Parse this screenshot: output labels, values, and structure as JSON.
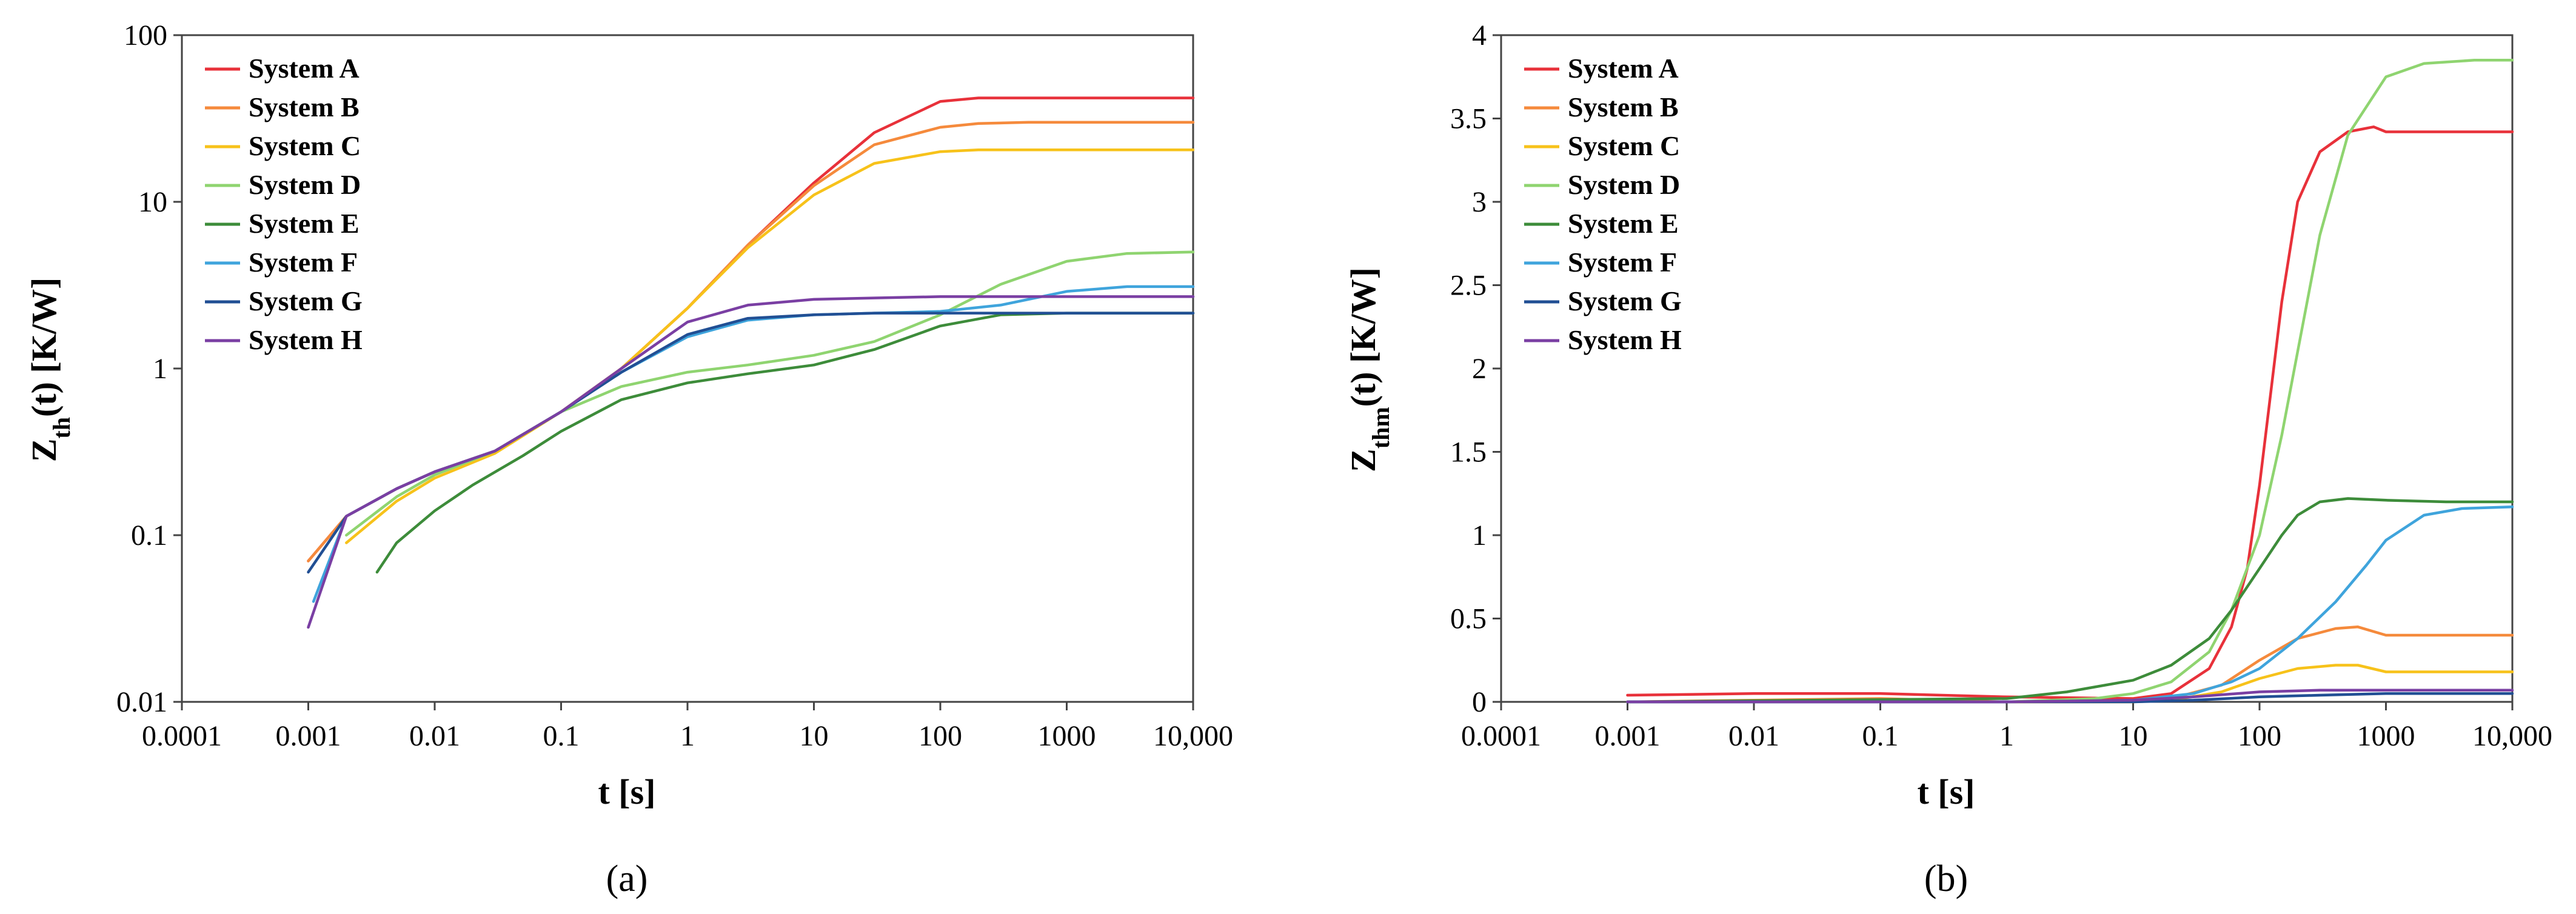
{
  "chart_data": [
    {
      "id": "a",
      "type": "line",
      "panel_label": "(a)",
      "ylabel_main": "Z",
      "ylabel_sub": "th",
      "ylabel_rest": "(t) [K/W]",
      "xlabel": "t [s]",
      "xscale": "log",
      "yscale": "log",
      "xlim": [
        0.0001,
        10000
      ],
      "ylim": [
        0.01,
        100
      ],
      "xticks": [
        0.0001,
        0.001,
        0.01,
        0.1,
        1,
        10,
        100,
        1000,
        10000
      ],
      "xtick_labels": [
        "0.0001",
        "0.001",
        "0.01",
        "0.1",
        "1",
        "10",
        "100",
        "1000",
        "10,000"
      ],
      "yticks": [
        0.01,
        0.1,
        1,
        10,
        100
      ],
      "ytick_labels": [
        "0.01",
        "0.1",
        "1",
        "10",
        "100"
      ],
      "legend": "top-left",
      "series": [
        {
          "name": "System A",
          "color": "#e8313a",
          "x": [
            0.001,
            0.002,
            0.005,
            0.01,
            0.03,
            0.1,
            0.3,
            1,
            3,
            10,
            30,
            100,
            200,
            500,
            10000
          ],
          "y": [
            0.07,
            0.13,
            0.19,
            0.24,
            0.32,
            0.55,
            1.0,
            2.3,
            5.5,
            13,
            26,
            40,
            42,
            42,
            42
          ]
        },
        {
          "name": "System B",
          "color": "#f58a3c",
          "x": [
            0.001,
            0.002,
            0.005,
            0.01,
            0.03,
            0.1,
            0.3,
            1,
            3,
            10,
            30,
            100,
            200,
            500,
            10000
          ],
          "y": [
            0.07,
            0.13,
            0.19,
            0.24,
            0.32,
            0.55,
            1.0,
            2.3,
            5.5,
            12.5,
            22,
            28,
            29.5,
            30,
            30
          ]
        },
        {
          "name": "System C",
          "color": "#f7c21a",
          "x": [
            0.002,
            0.005,
            0.01,
            0.03,
            0.1,
            0.3,
            1,
            3,
            10,
            30,
            100,
            200,
            500,
            10000
          ],
          "y": [
            0.09,
            0.16,
            0.22,
            0.31,
            0.55,
            1.0,
            2.3,
            5.3,
            11,
            17,
            20,
            20.5,
            20.5,
            20.5
          ]
        },
        {
          "name": "System D",
          "color": "#8fd470",
          "x": [
            0.002,
            0.005,
            0.01,
            0.03,
            0.1,
            0.3,
            1,
            3,
            10,
            30,
            100,
            300,
            1000,
            3000,
            10000
          ],
          "y": [
            0.1,
            0.17,
            0.23,
            0.32,
            0.55,
            0.78,
            0.95,
            1.05,
            1.2,
            1.45,
            2.1,
            3.2,
            4.4,
            4.9,
            5.0
          ]
        },
        {
          "name": "System E",
          "color": "#3d8c3a",
          "x": [
            0.0035,
            0.005,
            0.01,
            0.02,
            0.05,
            0.1,
            0.3,
            1,
            3,
            10,
            30,
            100,
            300,
            1000,
            10000
          ],
          "y": [
            0.06,
            0.09,
            0.14,
            0.2,
            0.3,
            0.42,
            0.65,
            0.82,
            0.93,
            1.05,
            1.3,
            1.8,
            2.1,
            2.15,
            2.15
          ]
        },
        {
          "name": "System F",
          "color": "#3fa4dc",
          "x": [
            0.0011,
            0.002,
            0.005,
            0.01,
            0.03,
            0.1,
            0.3,
            1,
            3,
            10,
            30,
            100,
            300,
            1000,
            3000,
            10000
          ],
          "y": [
            0.04,
            0.13,
            0.19,
            0.24,
            0.32,
            0.55,
            0.95,
            1.55,
            1.95,
            2.1,
            2.15,
            2.2,
            2.4,
            2.9,
            3.1,
            3.1
          ]
        },
        {
          "name": "System G",
          "color": "#214f94",
          "x": [
            0.001,
            0.002,
            0.005,
            0.01,
            0.03,
            0.1,
            0.3,
            1,
            3,
            10,
            30,
            100,
            300,
            1000,
            10000
          ],
          "y": [
            0.06,
            0.13,
            0.19,
            0.24,
            0.32,
            0.55,
            0.95,
            1.6,
            2.0,
            2.1,
            2.15,
            2.15,
            2.15,
            2.15,
            2.15
          ]
        },
        {
          "name": "System H",
          "color": "#7a3fa3",
          "x": [
            0.001,
            0.002,
            0.005,
            0.01,
            0.03,
            0.1,
            0.3,
            1,
            3,
            10,
            30,
            100,
            300,
            1000,
            10000
          ],
          "y": [
            0.028,
            0.13,
            0.19,
            0.24,
            0.32,
            0.55,
            1.0,
            1.9,
            2.4,
            2.6,
            2.65,
            2.7,
            2.7,
            2.7,
            2.7
          ]
        }
      ]
    },
    {
      "id": "b",
      "type": "line",
      "panel_label": "(b)",
      "ylabel_main": "Z",
      "ylabel_sub": "thm",
      "ylabel_rest": "(t) [K/W]",
      "xlabel": "t [s]",
      "xscale": "log",
      "yscale": "linear",
      "xlim": [
        0.0001,
        10000
      ],
      "ylim": [
        0,
        4
      ],
      "xticks": [
        0.0001,
        0.001,
        0.01,
        0.1,
        1,
        10,
        100,
        1000,
        10000
      ],
      "xtick_labels": [
        "0.0001",
        "0.001",
        "0.01",
        "0.1",
        "1",
        "10",
        "100",
        "1000",
        "10,000"
      ],
      "yticks": [
        0,
        0.5,
        1,
        1.5,
        2,
        2.5,
        3,
        3.5,
        4
      ],
      "ytick_labels": [
        "0",
        "0.5",
        "1",
        "1.5",
        "2",
        "2.5",
        "3",
        "3.5",
        "4"
      ],
      "legend": "top-left",
      "series": [
        {
          "name": "System A",
          "color": "#e8313a",
          "x": [
            0.001,
            0.01,
            0.1,
            1,
            10,
            20,
            40,
            60,
            80,
            100,
            150,
            200,
            300,
            500,
            800,
            1000,
            10000
          ],
          "y": [
            0.04,
            0.05,
            0.05,
            0.03,
            0.02,
            0.05,
            0.2,
            0.45,
            0.8,
            1.3,
            2.4,
            3.0,
            3.3,
            3.42,
            3.45,
            3.42,
            3.42
          ]
        },
        {
          "name": "System B",
          "color": "#f58a3c",
          "x": [
            0.001,
            0.1,
            1,
            10,
            20,
            50,
            100,
            200,
            400,
            600,
            1000,
            10000
          ],
          "y": [
            0.0,
            0.02,
            0.0,
            0.0,
            0.02,
            0.1,
            0.25,
            0.38,
            0.44,
            0.45,
            0.4,
            0.4
          ]
        },
        {
          "name": "System C",
          "color": "#f7c21a",
          "x": [
            0.001,
            1,
            10,
            20,
            50,
            100,
            200,
            400,
            600,
            1000,
            10000
          ],
          "y": [
            0.0,
            0.0,
            0.0,
            0.01,
            0.06,
            0.14,
            0.2,
            0.22,
            0.22,
            0.18,
            0.18
          ]
        },
        {
          "name": "System D",
          "color": "#8fd470",
          "x": [
            0.001,
            1,
            5,
            10,
            20,
            40,
            60,
            100,
            150,
            200,
            300,
            500,
            1000,
            2000,
            5000,
            10000
          ],
          "y": [
            0.0,
            0.0,
            0.02,
            0.05,
            0.12,
            0.3,
            0.55,
            1.0,
            1.6,
            2.1,
            2.8,
            3.4,
            3.75,
            3.83,
            3.85,
            3.85
          ]
        },
        {
          "name": "System E",
          "color": "#3d8c3a",
          "x": [
            0.001,
            1,
            3,
            10,
            20,
            40,
            60,
            100,
            150,
            200,
            300,
            500,
            1000,
            3000,
            10000
          ],
          "y": [
            0.0,
            0.02,
            0.06,
            0.13,
            0.22,
            0.38,
            0.55,
            0.8,
            1.0,
            1.12,
            1.2,
            1.22,
            1.21,
            1.2,
            1.2
          ]
        },
        {
          "name": "System F",
          "color": "#3fa4dc",
          "x": [
            0.001,
            1,
            10,
            30,
            60,
            100,
            200,
            400,
            700,
            1000,
            2000,
            4000,
            10000
          ],
          "y": [
            0.0,
            0.0,
            0.01,
            0.05,
            0.12,
            0.2,
            0.38,
            0.6,
            0.82,
            0.97,
            1.12,
            1.16,
            1.17
          ]
        },
        {
          "name": "System G",
          "color": "#214f94",
          "x": [
            0.001,
            1,
            10,
            30,
            100,
            300,
            1000,
            10000
          ],
          "y": [
            0.0,
            0.0,
            0.0,
            0.01,
            0.03,
            0.04,
            0.05,
            0.05
          ]
        },
        {
          "name": "System H",
          "color": "#7a3fa3",
          "x": [
            0.001,
            1,
            10,
            30,
            100,
            300,
            1000,
            10000
          ],
          "y": [
            0.0,
            0.0,
            0.01,
            0.03,
            0.06,
            0.07,
            0.07,
            0.07
          ]
        }
      ]
    }
  ]
}
